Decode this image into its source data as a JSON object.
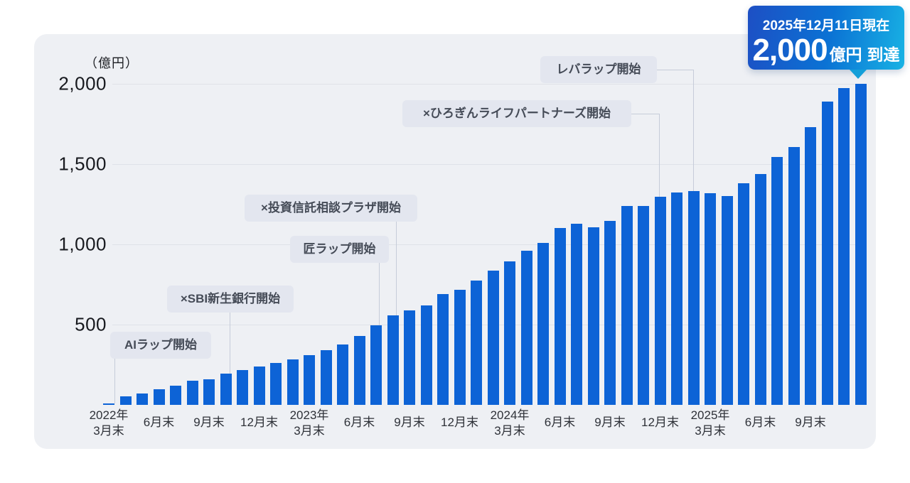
{
  "badge": {
    "line1": "2025年12月11日現在",
    "amount": "2,000",
    "unit": "億円",
    "suffix": "到達",
    "gradient_start": "#1d4fc4",
    "gradient_mid": "#0b72d4",
    "gradient_end": "#18b2e4"
  },
  "colors": {
    "page_background": "#ffffff",
    "panel_background": "#eef0f4",
    "bar": "#0d63d6",
    "gridline": "#dfe2e8",
    "connector": "#c6ccd9",
    "annotation_background": "#e3e6ef",
    "annotation_text": "#454b57"
  },
  "chart_data": {
    "type": "bar",
    "title": "",
    "unit_label": "（億円）",
    "ylim": [
      0,
      2000
    ],
    "yticks": [
      {
        "value": 2000,
        "label": "2,000"
      },
      {
        "value": 1500,
        "label": "1,500"
      },
      {
        "value": 1000,
        "label": "1,000"
      },
      {
        "value": 500,
        "label": "500"
      }
    ],
    "grid": "horizontal",
    "legend": "none",
    "months": [
      "2022-03",
      "2022-04",
      "2022-05",
      "2022-06",
      "2022-07",
      "2022-08",
      "2022-09",
      "2022-10",
      "2022-11",
      "2022-12",
      "2023-01",
      "2023-02",
      "2023-03",
      "2023-04",
      "2023-05",
      "2023-06",
      "2023-07",
      "2023-08",
      "2023-09",
      "2023-10",
      "2023-11",
      "2023-12",
      "2024-01",
      "2024-02",
      "2024-03",
      "2024-04",
      "2024-05",
      "2024-06",
      "2024-07",
      "2024-08",
      "2024-09",
      "2024-10",
      "2024-11",
      "2024-12",
      "2025-01",
      "2025-02",
      "2025-03",
      "2025-04",
      "2025-05",
      "2025-06",
      "2025-07",
      "2025-08",
      "2025-09",
      "2025-10",
      "2025-11",
      "2025-12"
    ],
    "values": [
      11,
      54,
      69,
      97,
      121,
      149,
      158,
      193,
      217,
      239,
      260,
      283,
      310,
      341,
      377,
      431,
      495,
      557,
      588,
      621,
      689,
      715,
      775,
      835,
      895,
      960,
      1010,
      1100,
      1130,
      1105,
      1145,
      1240,
      1240,
      1295,
      1325,
      1330,
      1320,
      1300,
      1380,
      1440,
      1545,
      1605,
      1730,
      1890,
      1975,
      2000
    ],
    "xticks": [
      {
        "index": 0,
        "lines": [
          "2022年",
          "3月末"
        ]
      },
      {
        "index": 3,
        "lines": [
          "6月末"
        ]
      },
      {
        "index": 6,
        "lines": [
          "9月末"
        ]
      },
      {
        "index": 9,
        "lines": [
          "12月末"
        ]
      },
      {
        "index": 12,
        "lines": [
          "2023年",
          "3月末"
        ]
      },
      {
        "index": 15,
        "lines": [
          "6月末"
        ]
      },
      {
        "index": 18,
        "lines": [
          "9月末"
        ]
      },
      {
        "index": 21,
        "lines": [
          "12月末"
        ]
      },
      {
        "index": 24,
        "lines": [
          "2024年",
          "3月末"
        ]
      },
      {
        "index": 27,
        "lines": [
          "6月末"
        ]
      },
      {
        "index": 30,
        "lines": [
          "9月末"
        ]
      },
      {
        "index": 33,
        "lines": [
          "12月末"
        ]
      },
      {
        "index": 36,
        "lines": [
          "2025年",
          "3月末"
        ]
      },
      {
        "index": 39,
        "lines": [
          "6月末"
        ]
      },
      {
        "index": 42,
        "lines": [
          "9月末"
        ]
      }
    ],
    "annotations": [
      {
        "label": "AIラップ開始",
        "month": "2022-03",
        "month_index": 0
      },
      {
        "label": "×SBI新生銀行開始",
        "month": "2022-10",
        "month_index": 7
      },
      {
        "label": "匠ラップ開始",
        "month": "2023-07",
        "month_index": 16
      },
      {
        "label": "×投資信託相談プラザ開始",
        "month": "2023-08",
        "month_index": 17
      },
      {
        "label": "×ひろぎんライフパートナーズ開始",
        "month": "2024-12",
        "month_index": 33
      },
      {
        "label": "レバラップ開始",
        "month": "2025-02",
        "month_index": 35
      }
    ]
  }
}
